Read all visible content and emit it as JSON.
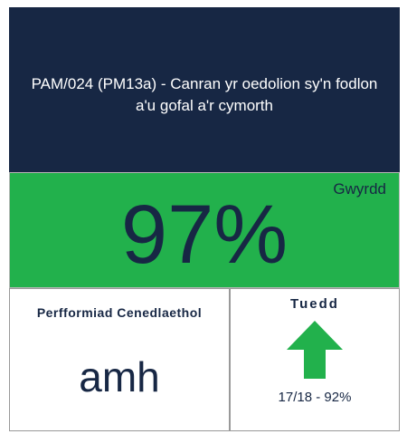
{
  "title": "PAM/024 (PM13a) - Canran yr oedolion sy'n fodlon a'u gofal a'r cymorth",
  "value": "97%",
  "status": "Gwyrdd",
  "national_label": "Perfformiad Cenedlaethol",
  "national_value": "amh",
  "trend_label": "Tuedd",
  "trend_value": "17/18 - 92%"
}
